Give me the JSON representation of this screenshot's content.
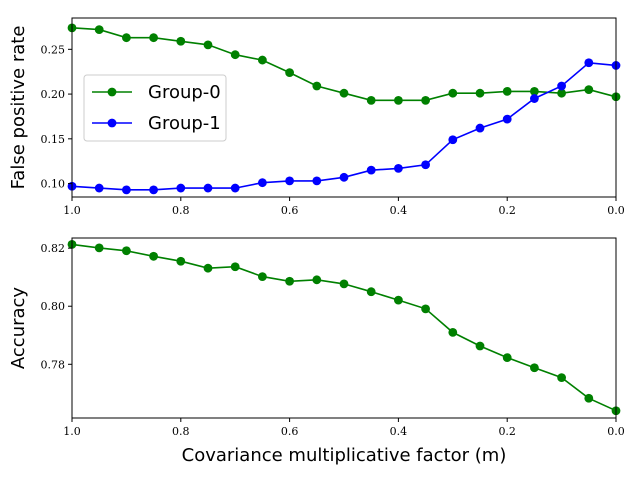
{
  "chart_data": [
    {
      "type": "line",
      "title": "",
      "xlabel": "",
      "ylabel": "False positive rate",
      "xlim": [
        1.0,
        0.0
      ],
      "ylim": [
        0.085,
        0.285
      ],
      "x_inverted": true,
      "xticks": [
        "1.0",
        "0.8",
        "0.6",
        "0.4",
        "0.2",
        "0.0"
      ],
      "yticks": [
        "0.10",
        "0.15",
        "0.20",
        "0.25"
      ],
      "legend": {
        "placement": "center-left",
        "entries": [
          "Group-0",
          "Group-1"
        ]
      },
      "x": [
        1.0,
        0.95,
        0.9,
        0.85,
        0.8,
        0.75,
        0.7,
        0.65,
        0.6,
        0.55,
        0.5,
        0.45,
        0.4,
        0.35,
        0.3,
        0.25,
        0.2,
        0.15,
        0.1,
        0.05,
        0.0
      ],
      "series": [
        {
          "name": "Group-0",
          "color": "#008000",
          "values": [
            0.274,
            0.272,
            0.263,
            0.263,
            0.259,
            0.255,
            0.244,
            0.238,
            0.224,
            0.209,
            0.201,
            0.193,
            0.193,
            0.193,
            0.201,
            0.201,
            0.203,
            0.203,
            0.201,
            0.205,
            0.197
          ]
        },
        {
          "name": "Group-1",
          "color": "#0000ff",
          "values": [
            0.097,
            0.095,
            0.093,
            0.093,
            0.095,
            0.095,
            0.095,
            0.101,
            0.103,
            0.103,
            0.107,
            0.115,
            0.117,
            0.121,
            0.149,
            0.162,
            0.172,
            0.195,
            0.209,
            0.235,
            0.232
          ]
        }
      ]
    },
    {
      "type": "line",
      "title": "",
      "xlabel": "Covariance multiplicative factor (m)",
      "ylabel": "Accuracy",
      "xlim": [
        1.0,
        0.0
      ],
      "ylim": [
        0.7615,
        0.8235
      ],
      "x_inverted": true,
      "xticks": [
        "1.0",
        "0.8",
        "0.6",
        "0.4",
        "0.2",
        "0.0"
      ],
      "yticks": [
        "0.78",
        "0.80",
        "0.82"
      ],
      "x": [
        1.0,
        0.95,
        0.9,
        0.85,
        0.8,
        0.75,
        0.7,
        0.65,
        0.6,
        0.55,
        0.5,
        0.45,
        0.4,
        0.35,
        0.3,
        0.25,
        0.2,
        0.15,
        0.1,
        0.05,
        0.0
      ],
      "series": [
        {
          "name": "",
          "color": "#008000",
          "values": [
            0.8213,
            0.8201,
            0.8191,
            0.8172,
            0.8155,
            0.8131,
            0.8136,
            0.8102,
            0.8086,
            0.8091,
            0.8077,
            0.805,
            0.8021,
            0.7991,
            0.791,
            0.7863,
            0.7823,
            0.7788,
            0.7754,
            0.7683,
            0.764
          ]
        }
      ]
    }
  ]
}
